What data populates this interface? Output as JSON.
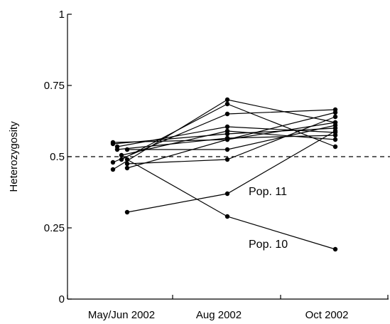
{
  "chart_data": {
    "type": "line",
    "title": "",
    "xlabel": "",
    "ylabel": "Heterozygosity",
    "categories": [
      "May/Jun 2002",
      "Aug 2002",
      "Oct 2002"
    ],
    "ylim": [
      0,
      1
    ],
    "yticks": [
      0,
      0.25,
      0.5,
      0.75,
      1
    ],
    "ytick_labels": [
      "0",
      "0.25",
      "0.5",
      "0.75",
      "1"
    ],
    "reference_line": {
      "y": 0.5,
      "style": "dashed"
    },
    "grid": false,
    "legend": "none",
    "series": [
      {
        "x": [
          "May/Jun 2002",
          "Aug 2002",
          "Oct 2002"
        ],
        "values": [
          0.55,
          0.56,
          0.62
        ]
      },
      {
        "x": [
          "May/Jun 2002",
          "Aug 2002",
          "Oct 2002"
        ],
        "values": [
          0.545,
          0.58,
          0.6
        ]
      },
      {
        "x": [
          "May/Jun 2002",
          "Aug 2002",
          "Oct 2002"
        ],
        "values": [
          0.535,
          0.605,
          0.585
        ]
      },
      {
        "x": [
          "May/Jun 2002",
          "Aug 2002",
          "Oct 2002"
        ],
        "values": [
          0.525,
          0.565,
          0.575
        ]
      },
      {
        "x": [
          "May/Jun 2002",
          "Aug 2002",
          "Oct 2002"
        ],
        "values": [
          0.505,
          0.59,
          0.56
        ]
      },
      {
        "x": [
          "May/Jun 2002",
          "Aug 2002",
          "Oct 2002"
        ],
        "values": [
          0.48,
          0.65,
          0.665
        ]
      },
      {
        "x": [
          "May/Jun 2002",
          "Aug 2002",
          "Oct 2002"
        ],
        "values": [
          0.455,
          0.7,
          0.62
        ]
      },
      {
        "x": [
          "May/Jun 2002",
          "Aug 2002",
          "Oct 2002"
        ],
        "values": [
          0.525,
          0.525,
          0.61
        ]
      },
      {
        "x": [
          "May/Jun 2002",
          "Aug 2002",
          "Oct 2002"
        ],
        "values": [
          0.49,
          0.685,
          0.535
        ]
      },
      {
        "x": [
          "May/Jun 2002",
          "Aug 2002",
          "Oct 2002"
        ],
        "values": [
          0.46,
          0.56,
          0.655
        ]
      },
      {
        "x": [
          "May/Jun 2002",
          "Aug 2002",
          "Oct 2002"
        ],
        "values": [
          0.475,
          0.49,
          0.64
        ]
      },
      {
        "name": "Pop. 11",
        "x": [
          "May/Jun 2002",
          "Aug 2002",
          "Oct 2002"
        ],
        "values": [
          0.305,
          0.37,
          0.59
        ]
      },
      {
        "name": "Pop. 10",
        "x": [
          "May/Jun 2002",
          "Aug 2002",
          "Oct 2002"
        ],
        "values": [
          0.49,
          0.29,
          0.175
        ]
      }
    ],
    "annotations": [
      "Pop. 11",
      "Pop. 10"
    ]
  }
}
